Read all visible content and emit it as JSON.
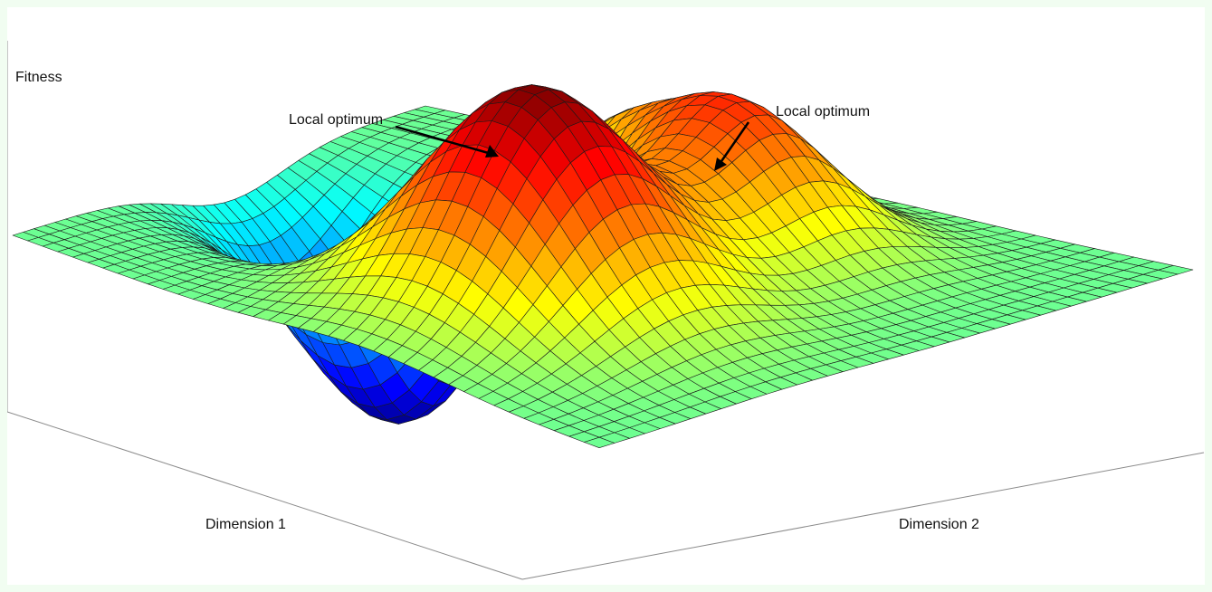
{
  "chart_data": {
    "type": "surface",
    "zlabel": "Fitness",
    "xlabel": "Dimension 1",
    "ylabel": "Dimension 2",
    "colormap": "jet",
    "grid_size": [
      40,
      40
    ],
    "features": [
      {
        "kind": "peak",
        "name": "global maximum",
        "x": 0.2,
        "y": -0.35,
        "z": 1.0
      },
      {
        "kind": "peak",
        "name": "local maximum",
        "x": 0.22,
        "y": 0.4,
        "z": 0.62
      },
      {
        "kind": "peak",
        "name": "local maximum",
        "x": -0.2,
        "y": 0.5,
        "z": 0.42
      },
      {
        "kind": "pit",
        "name": "minimum",
        "x": -0.5,
        "y": 0.05,
        "z": -0.95
      }
    ],
    "annotations": [
      {
        "text": "Local optimum",
        "target": "left local optimum"
      },
      {
        "text": "Local optimum",
        "target": "right local optimum"
      }
    ]
  },
  "colors": {
    "page_background": "#f1fdf1",
    "plot_background": "#ffffff",
    "mesh_lines": "#1a1a1a",
    "axes_lines": "#8a8a8a"
  }
}
